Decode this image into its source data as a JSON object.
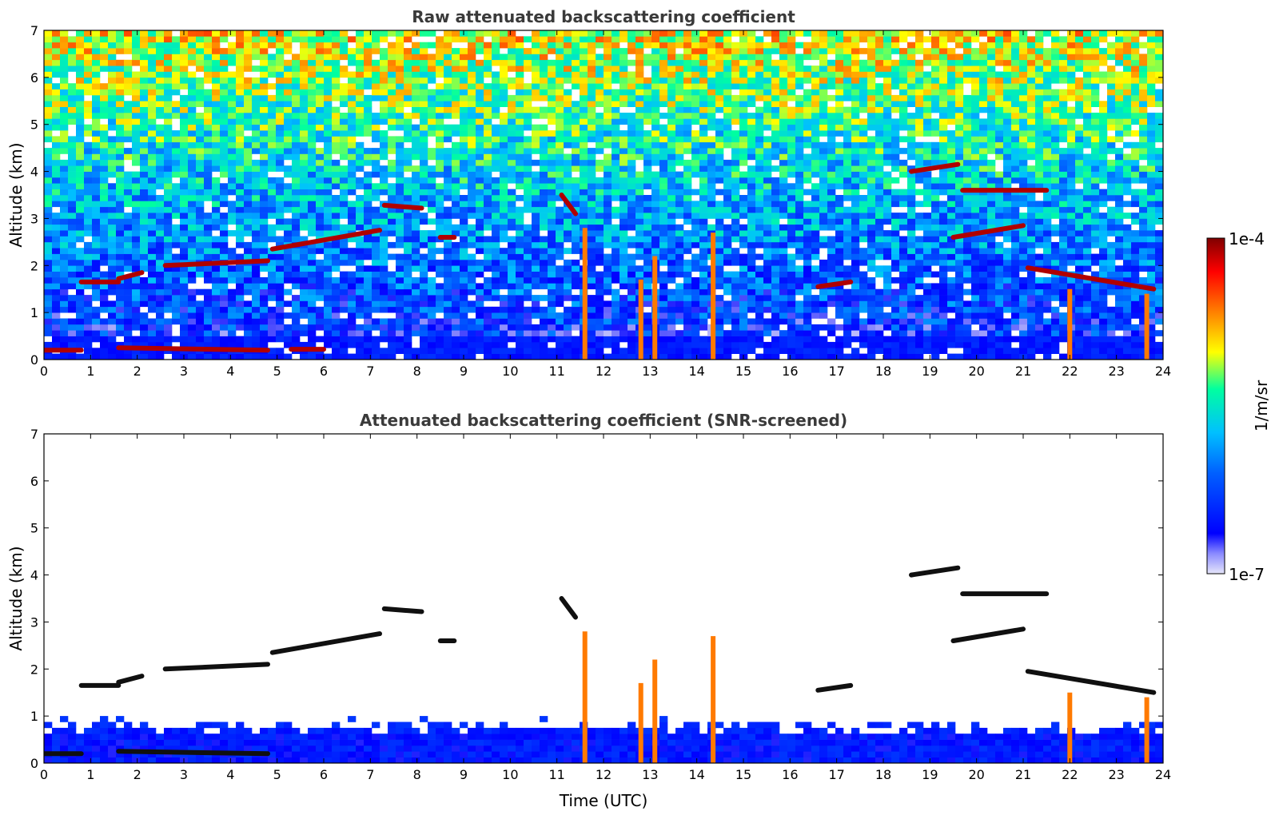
{
  "chart_data": [
    {
      "type": "heatmap",
      "title": "Raw attenuated backscattering coefficient",
      "xlabel": "",
      "ylabel": "Altitude (km)",
      "xlim": [
        0,
        24
      ],
      "ylim": [
        0,
        7
      ],
      "xticks": [
        "0",
        "1",
        "2",
        "3",
        "4",
        "5",
        "6",
        "7",
        "8",
        "9",
        "10",
        "11",
        "12",
        "13",
        "14",
        "15",
        "16",
        "17",
        "18",
        "19",
        "20",
        "21",
        "22",
        "23",
        "24"
      ],
      "yticks": [
        "0",
        "1",
        "2",
        "3",
        "4",
        "5",
        "6",
        "7"
      ],
      "noise": "dense",
      "cloud_layers": [
        {
          "x": [
            0.0,
            0.8
          ],
          "y": [
            0.2,
            0.2
          ]
        },
        {
          "x": [
            0.8,
            1.6
          ],
          "y": [
            1.65,
            1.65
          ]
        },
        {
          "x": [
            1.6,
            2.1
          ],
          "y": [
            1.72,
            1.85
          ]
        },
        {
          "x": [
            1.6,
            4.8
          ],
          "y": [
            0.25,
            0.2
          ]
        },
        {
          "x": [
            2.6,
            4.8
          ],
          "y": [
            2.0,
            2.1
          ]
        },
        {
          "x": [
            4.9,
            7.2
          ],
          "y": [
            2.35,
            2.75
          ]
        },
        {
          "x": [
            5.3,
            6.0
          ],
          "y": [
            0.22,
            0.22
          ]
        },
        {
          "x": [
            7.3,
            8.1
          ],
          "y": [
            3.28,
            3.22
          ]
        },
        {
          "x": [
            8.5,
            8.8
          ],
          "y": [
            2.6,
            2.6
          ]
        },
        {
          "x": [
            11.1,
            11.4
          ],
          "y": [
            3.5,
            3.1
          ]
        },
        {
          "x": [
            18.6,
            19.6
          ],
          "y": [
            4.0,
            4.15
          ]
        },
        {
          "x": [
            19.7,
            21.5
          ],
          "y": [
            3.6,
            3.6
          ]
        },
        {
          "x": [
            19.5,
            21.0
          ],
          "y": [
            2.6,
            2.85
          ]
        },
        {
          "x": [
            21.1,
            23.8
          ],
          "y": [
            1.95,
            1.5
          ]
        },
        {
          "x": [
            16.6,
            17.3
          ],
          "y": [
            1.55,
            1.65
          ]
        }
      ],
      "fall_streaks": [
        {
          "x": 11.6,
          "y": [
            0.0,
            2.8
          ]
        },
        {
          "x": 12.8,
          "y": [
            0.0,
            1.7
          ]
        },
        {
          "x": 13.1,
          "y": [
            0.0,
            2.2
          ]
        },
        {
          "x": 14.35,
          "y": [
            0.0,
            2.7
          ]
        },
        {
          "x": 22.0,
          "y": [
            0.0,
            1.5
          ]
        },
        {
          "x": 23.65,
          "y": [
            0.0,
            1.4
          ]
        }
      ]
    },
    {
      "type": "heatmap",
      "title": "Attenuated backscattering coefficient (SNR-screened)",
      "xlabel": "Time (UTC)",
      "ylabel": "Altitude (km)",
      "xlim": [
        0,
        24
      ],
      "ylim": [
        0,
        7
      ],
      "xticks": [
        "0",
        "1",
        "2",
        "3",
        "4",
        "5",
        "6",
        "7",
        "8",
        "9",
        "10",
        "11",
        "12",
        "13",
        "14",
        "15",
        "16",
        "17",
        "18",
        "19",
        "20",
        "21",
        "22",
        "23",
        "24"
      ],
      "yticks": [
        "0",
        "1",
        "2",
        "3",
        "4",
        "5",
        "6",
        "7"
      ],
      "noise": "screened",
      "cloud_layers": [
        {
          "x": [
            0.0,
            0.8
          ],
          "y": [
            0.2,
            0.2
          ]
        },
        {
          "x": [
            0.8,
            1.6
          ],
          "y": [
            1.65,
            1.65
          ]
        },
        {
          "x": [
            1.6,
            2.1
          ],
          "y": [
            1.72,
            1.85
          ]
        },
        {
          "x": [
            1.6,
            4.8
          ],
          "y": [
            0.25,
            0.2
          ]
        },
        {
          "x": [
            2.6,
            4.8
          ],
          "y": [
            2.0,
            2.1
          ]
        },
        {
          "x": [
            4.9,
            7.2
          ],
          "y": [
            2.35,
            2.75
          ]
        },
        {
          "x": [
            7.3,
            8.1
          ],
          "y": [
            3.28,
            3.22
          ]
        },
        {
          "x": [
            8.5,
            8.8
          ],
          "y": [
            2.6,
            2.6
          ]
        },
        {
          "x": [
            11.1,
            11.4
          ],
          "y": [
            3.5,
            3.1
          ]
        },
        {
          "x": [
            18.6,
            19.6
          ],
          "y": [
            4.0,
            4.15
          ]
        },
        {
          "x": [
            19.7,
            21.5
          ],
          "y": [
            3.6,
            3.6
          ]
        },
        {
          "x": [
            19.5,
            21.0
          ],
          "y": [
            2.6,
            2.85
          ]
        },
        {
          "x": [
            21.1,
            23.8
          ],
          "y": [
            1.95,
            1.5
          ]
        },
        {
          "x": [
            16.6,
            17.3
          ],
          "y": [
            1.55,
            1.65
          ]
        }
      ],
      "fall_streaks": [
        {
          "x": 11.6,
          "y": [
            0.0,
            2.8
          ]
        },
        {
          "x": 12.8,
          "y": [
            0.0,
            1.7
          ]
        },
        {
          "x": 13.1,
          "y": [
            0.0,
            2.2
          ]
        },
        {
          "x": 14.35,
          "y": [
            0.0,
            2.7
          ]
        },
        {
          "x": 22.0,
          "y": [
            0.0,
            1.5
          ]
        },
        {
          "x": 23.65,
          "y": [
            0.0,
            1.4
          ]
        }
      ]
    }
  ],
  "colorbar": {
    "label": "1/m/sr",
    "max_label": "1e-4",
    "min_label": "1e-7",
    "scale": "log",
    "colors": [
      "#e6e6fa",
      "#0000ff",
      "#00c0ff",
      "#00ffa0",
      "#ffff00",
      "#ff8000",
      "#ff0000",
      "#800000"
    ]
  }
}
